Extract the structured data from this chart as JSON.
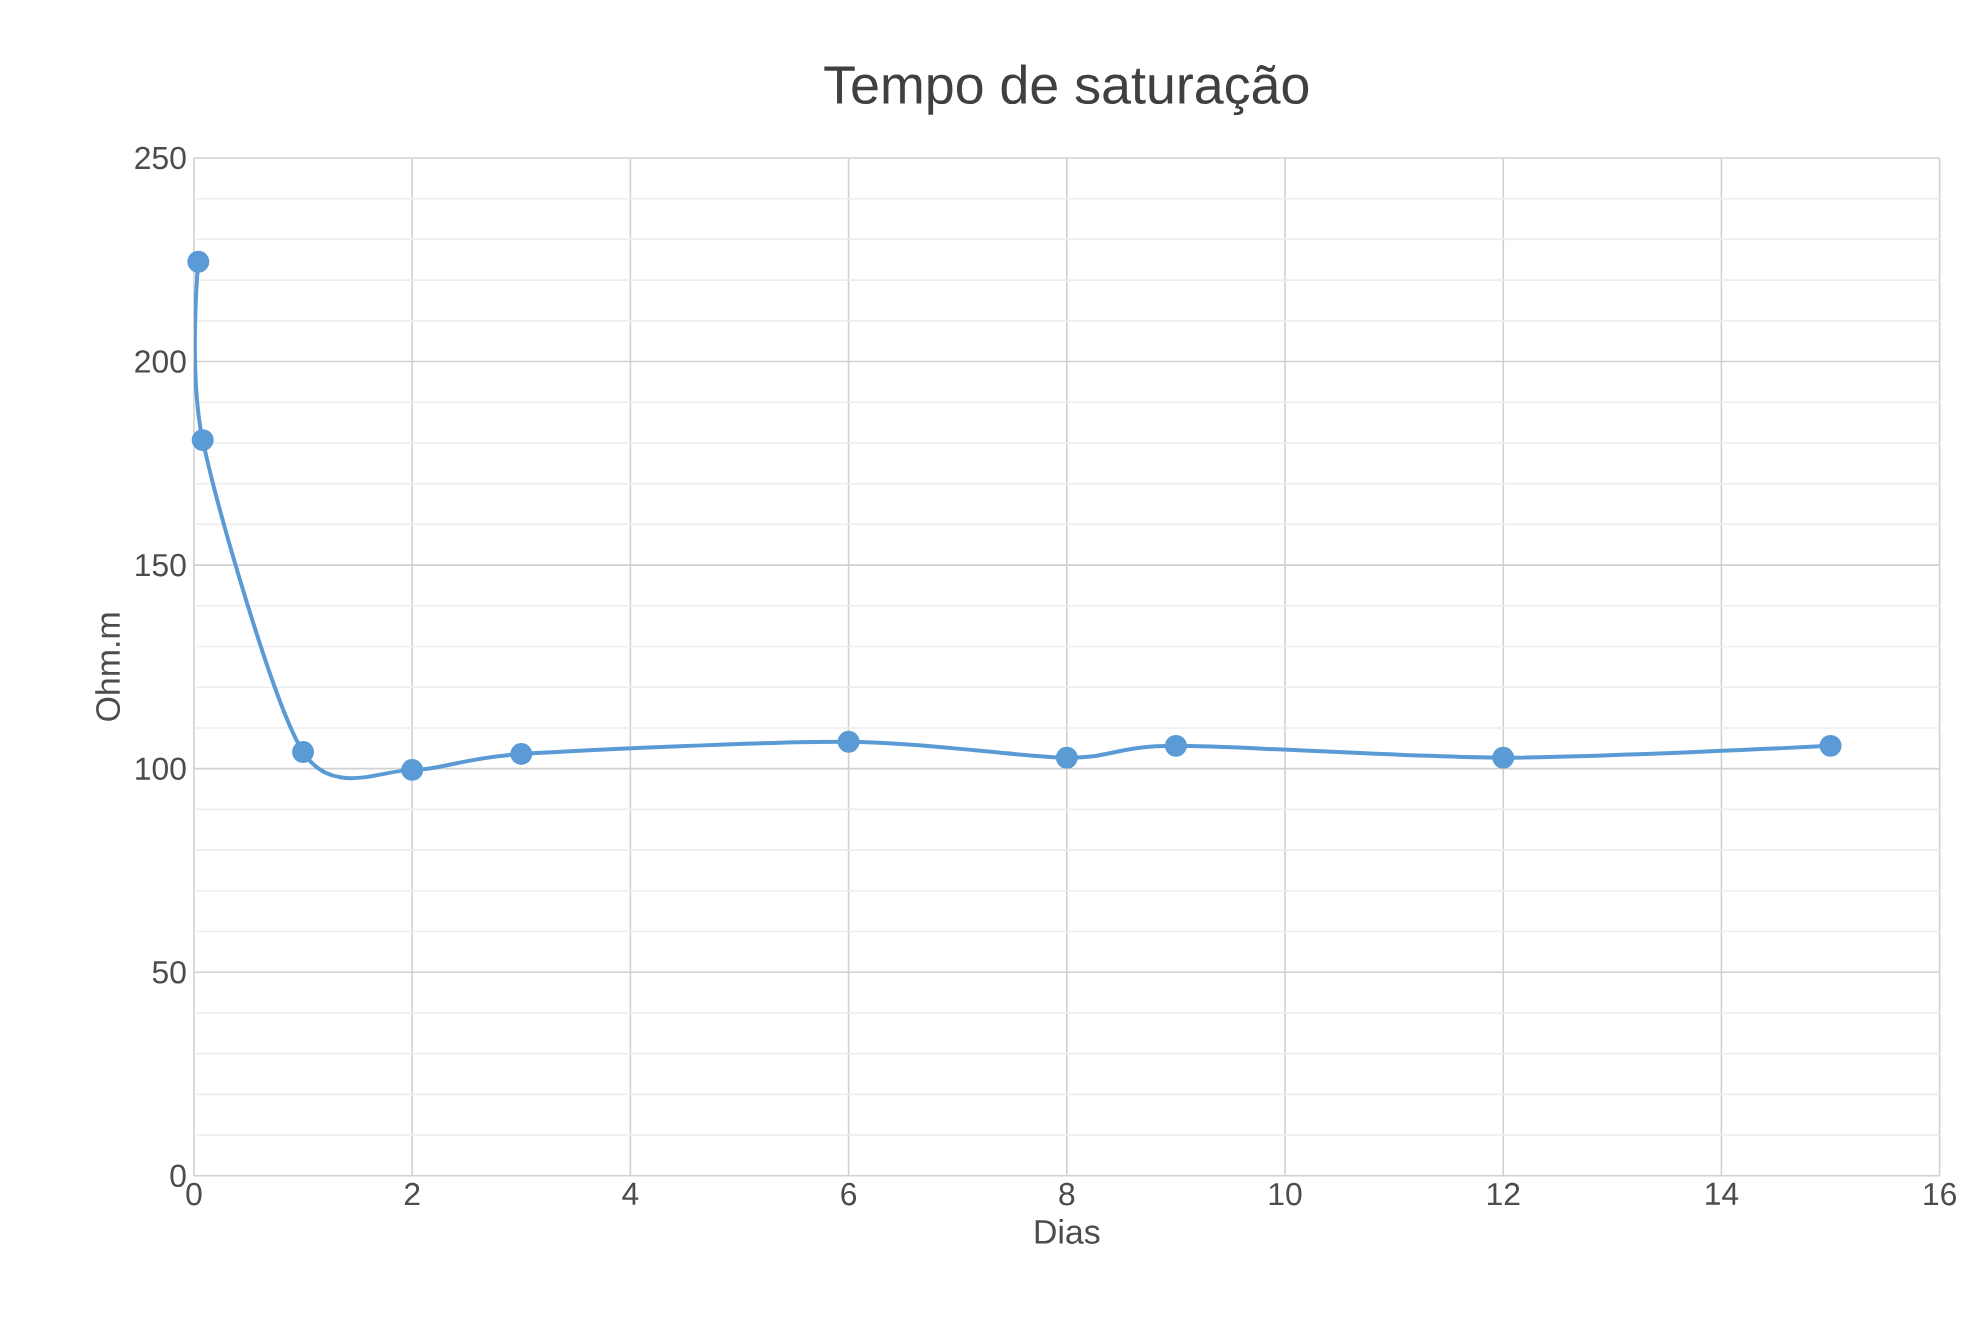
{
  "chart_data": {
    "type": "line",
    "title": "Tempo de saturação",
    "xlabel": "Dias",
    "ylabel": "Ohm.m",
    "x": [
      0.04,
      0.08,
      1,
      2,
      3,
      6,
      8,
      9,
      12,
      15
    ],
    "series": [
      {
        "color": "#5b9bd5",
        "values": [
          224.5,
          180.7,
          104.1,
          99.7,
          103.6,
          106.6,
          102.7,
          105.6,
          102.7,
          105.6
        ]
      }
    ],
    "xlim": [
      0,
      16
    ],
    "xticks": [
      0,
      2,
      4,
      6,
      8,
      10,
      12,
      14,
      16
    ],
    "ylim": [
      0,
      250
    ],
    "yticks": [
      0,
      50,
      100,
      150,
      200,
      250
    ],
    "grid": true,
    "marker": "circle",
    "line_style": "solid"
  }
}
